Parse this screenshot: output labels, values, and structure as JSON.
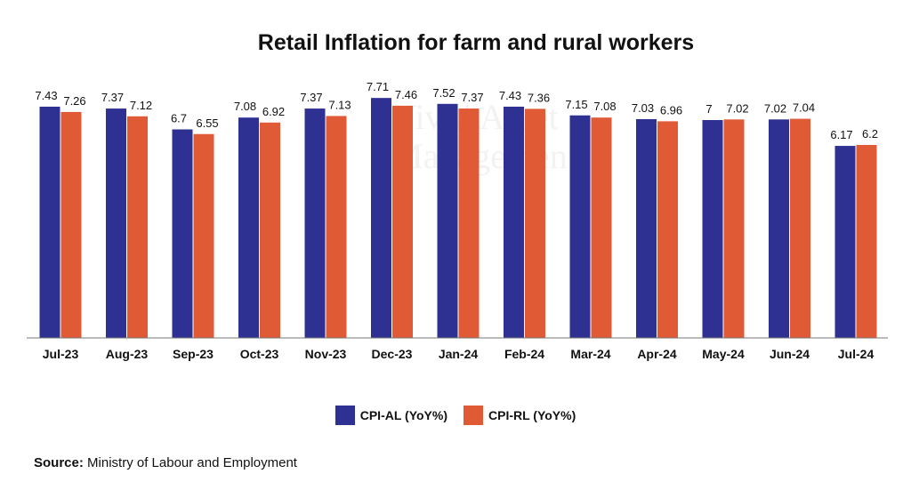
{
  "chart_data": {
    "type": "bar",
    "title": "Retail Inflation for farm and rural workers",
    "categories": [
      "Jul-23",
      "Aug-23",
      "Sep-23",
      "Oct-23",
      "Nov-23",
      "Dec-23",
      "Jan-24",
      "Feb-24",
      "Mar-24",
      "Apr-24",
      "May-24",
      "Jun-24",
      "Jul-24"
    ],
    "series": [
      {
        "name": "CPI-AL (YoY%)",
        "color": "#2e3192",
        "values": [
          7.43,
          7.37,
          6.7,
          7.08,
          7.37,
          7.71,
          7.52,
          7.43,
          7.15,
          7.03,
          7,
          7.02,
          6.17
        ]
      },
      {
        "name": "CPI-RL (YoY%)",
        "color": "#e05a35",
        "values": [
          7.26,
          7.12,
          6.55,
          6.92,
          7.13,
          7.46,
          7.37,
          7.36,
          7.08,
          6.96,
          7.02,
          7.04,
          6.2
        ]
      }
    ],
    "xlabel": "",
    "ylabel": "",
    "ylim": [
      0,
      8.5
    ],
    "grid": false,
    "legend_position": "bottom"
  },
  "source": {
    "label": "Source:",
    "text": "Ministry of Labour and Employment"
  },
  "watermark": {
    "line1": "Viviti Asset",
    "line2": "Management"
  }
}
